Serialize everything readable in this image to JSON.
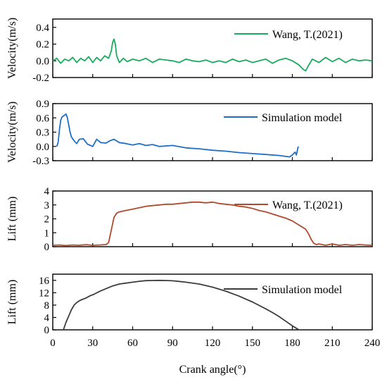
{
  "chart_data": [
    {
      "type": "line",
      "ylabel": "Velocity(m/s)",
      "xlim": [
        0,
        240
      ],
      "ylim": [
        -0.2,
        0.5
      ],
      "yticks": [
        -0.2,
        0.0,
        0.2,
        0.4
      ],
      "ytick_labels": [
        "-0.2",
        "0.0",
        "0.2",
        "0.4"
      ],
      "legend_position": "top-right",
      "series": [
        {
          "name": "Wang, T.(2021)",
          "color": "#1aab5c",
          "x": [
            0,
            3,
            6,
            9,
            12,
            15,
            18,
            21,
            24,
            27,
            30,
            33,
            36,
            39,
            42,
            44,
            45,
            46,
            47,
            48,
            50,
            53,
            56,
            60,
            65,
            70,
            75,
            80,
            85,
            90,
            95,
            100,
            105,
            110,
            115,
            120,
            125,
            130,
            135,
            140,
            145,
            150,
            155,
            160,
            165,
            170,
            175,
            180,
            185,
            188,
            190,
            192,
            195,
            200,
            205,
            210,
            215,
            220,
            225,
            230,
            235,
            240
          ],
          "y": [
            0.0,
            0.03,
            -0.03,
            0.02,
            0.0,
            0.04,
            -0.02,
            0.03,
            0.0,
            0.05,
            -0.02,
            0.04,
            0.0,
            0.06,
            0.03,
            0.12,
            0.22,
            0.26,
            0.2,
            0.06,
            -0.02,
            0.03,
            -0.01,
            0.02,
            0.0,
            0.03,
            -0.02,
            0.02,
            0.01,
            0.0,
            -0.02,
            0.02,
            0.0,
            -0.01,
            0.01,
            -0.02,
            0.0,
            -0.02,
            0.02,
            -0.01,
            0.01,
            -0.02,
            0.0,
            0.02,
            -0.03,
            0.01,
            0.03,
            0.0,
            -0.05,
            -0.1,
            -0.12,
            -0.06,
            0.02,
            -0.02,
            0.04,
            -0.01,
            0.03,
            -0.02,
            0.02,
            0.0,
            0.01,
            0.0
          ]
        }
      ]
    },
    {
      "type": "line",
      "ylabel": "Velocity(m/s)",
      "xlim": [
        0,
        240
      ],
      "ylim": [
        -0.3,
        0.9
      ],
      "yticks": [
        -0.3,
        0.0,
        0.3,
        0.6,
        0.9
      ],
      "ytick_labels": [
        "-0.3",
        "0.0",
        "0.3",
        "0.6",
        "0.9"
      ],
      "legend_position": "top-right",
      "series": [
        {
          "name": "Simulation model",
          "color": "#1f6fc8",
          "x": [
            3,
            4,
            5,
            6,
            7,
            8,
            9,
            10,
            11,
            12,
            13,
            14,
            16,
            18,
            20,
            23,
            26,
            30,
            33,
            36,
            40,
            43,
            46,
            50,
            55,
            60,
            65,
            70,
            75,
            80,
            90,
            100,
            110,
            120,
            130,
            140,
            150,
            160,
            170,
            175,
            178,
            180,
            182,
            183,
            184,
            184.5
          ],
          "y": [
            0.0,
            0.08,
            0.35,
            0.55,
            0.62,
            0.64,
            0.66,
            0.68,
            0.6,
            0.45,
            0.3,
            0.2,
            0.12,
            0.06,
            0.15,
            0.16,
            0.05,
            0.0,
            0.15,
            0.08,
            0.07,
            0.12,
            0.15,
            0.08,
            0.06,
            0.03,
            0.06,
            0.02,
            0.04,
            0.0,
            0.02,
            -0.03,
            -0.05,
            -0.08,
            -0.1,
            -0.13,
            -0.15,
            -0.17,
            -0.19,
            -0.21,
            -0.22,
            -0.18,
            -0.12,
            -0.18,
            -0.05,
            0.0
          ]
        }
      ]
    },
    {
      "type": "line",
      "ylabel": "Lift (mm)",
      "xlim": [
        0,
        240
      ],
      "ylim": [
        0,
        4
      ],
      "yticks": [
        0,
        1,
        2,
        3,
        4
      ],
      "ytick_labels": [
        "0",
        "1",
        "2",
        "3",
        "4"
      ],
      "legend_position": "top-right",
      "series": [
        {
          "name": "Wang, T.(2021)",
          "color": "#b04a2c",
          "x": [
            0,
            5,
            10,
            15,
            20,
            25,
            30,
            35,
            40,
            42,
            44,
            46,
            48,
            50,
            55,
            60,
            65,
            70,
            75,
            80,
            85,
            90,
            95,
            100,
            105,
            110,
            115,
            120,
            125,
            130,
            135,
            140,
            145,
            150,
            155,
            160,
            165,
            170,
            175,
            180,
            185,
            190,
            192,
            194,
            196,
            198,
            200,
            205,
            210,
            215,
            220,
            225,
            230,
            235,
            240
          ],
          "y": [
            0.1,
            0.12,
            0.08,
            0.12,
            0.1,
            0.14,
            0.1,
            0.12,
            0.15,
            0.3,
            1.2,
            2.1,
            2.4,
            2.5,
            2.6,
            2.7,
            2.8,
            2.9,
            2.95,
            3.0,
            3.05,
            3.05,
            3.1,
            3.15,
            3.2,
            3.2,
            3.15,
            3.2,
            3.1,
            3.05,
            3.0,
            2.9,
            2.85,
            2.75,
            2.6,
            2.5,
            2.35,
            2.2,
            2.05,
            1.85,
            1.55,
            1.25,
            0.95,
            0.55,
            0.25,
            0.15,
            0.2,
            0.1,
            0.2,
            0.1,
            0.15,
            0.1,
            0.15,
            0.12,
            0.1
          ]
        }
      ]
    },
    {
      "type": "line",
      "ylabel": "Lift (mm)",
      "xlabel": "Crank angle(°)",
      "xlim": [
        0,
        240
      ],
      "ylim": [
        0,
        18
      ],
      "xticks": [
        0,
        30,
        60,
        90,
        120,
        150,
        180,
        210,
        240
      ],
      "xtick_labels": [
        "0",
        "30",
        "60",
        "90",
        "120",
        "150",
        "180",
        "210",
        "240"
      ],
      "yticks": [
        0,
        4,
        8,
        12,
        16
      ],
      "ytick_labels": [
        "0",
        "4",
        "8",
        "12",
        "16"
      ],
      "legend_position": "top-right",
      "series": [
        {
          "name": "Simulation model",
          "color": "#3c3c3c",
          "x": [
            8,
            10,
            12,
            14,
            16,
            18,
            20,
            22,
            25,
            28,
            31,
            35,
            40,
            45,
            50,
            55,
            60,
            65,
            70,
            75,
            80,
            85,
            90,
            95,
            100,
            110,
            120,
            130,
            140,
            150,
            160,
            165,
            170,
            175,
            180,
            183,
            185
          ],
          "y": [
            0,
            2.5,
            4.5,
            6.5,
            8.0,
            8.8,
            9.4,
            9.8,
            10.3,
            11.0,
            11.5,
            12.4,
            13.3,
            14.2,
            14.8,
            15.1,
            15.4,
            15.7,
            15.9,
            15.95,
            16.0,
            15.95,
            15.85,
            15.65,
            15.4,
            14.8,
            13.8,
            12.5,
            10.9,
            9.0,
            6.8,
            5.6,
            4.3,
            2.8,
            1.3,
            0.5,
            0.0
          ]
        }
      ]
    }
  ]
}
